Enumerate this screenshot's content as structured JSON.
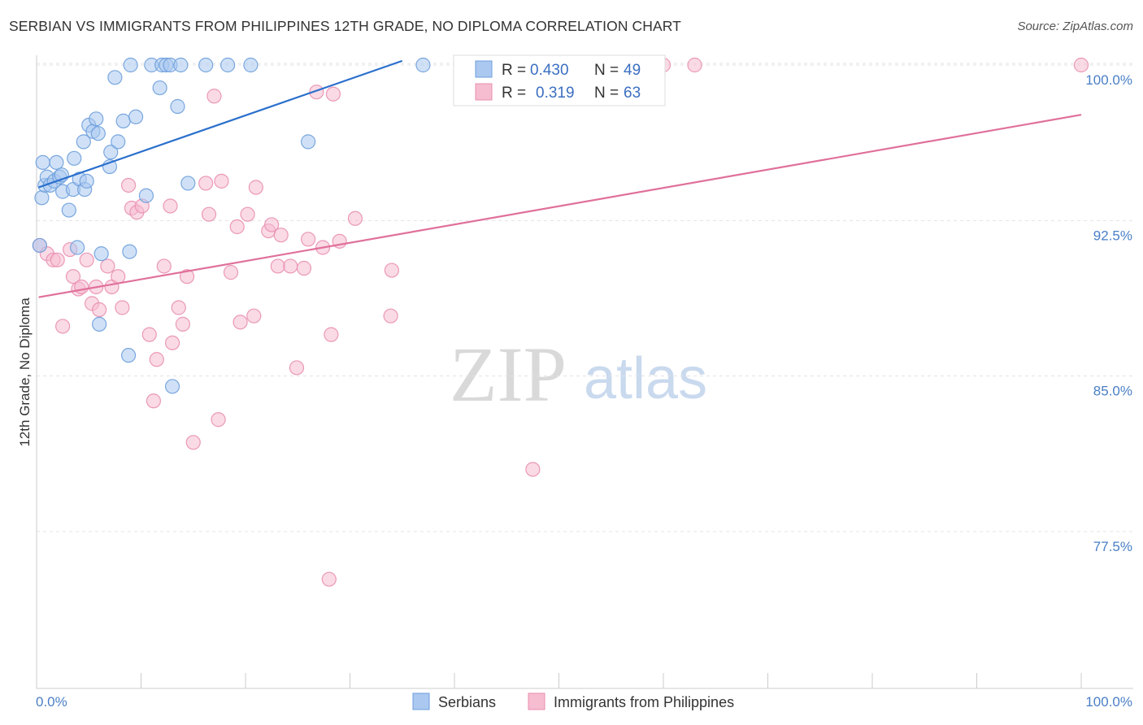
{
  "title": "SERBIAN VS IMMIGRANTS FROM PHILIPPINES 12TH GRADE, NO DIPLOMA CORRELATION CHART",
  "source": "Source: ZipAtlas.com",
  "watermark": {
    "zip": "ZIP",
    "atlas": "atlas"
  },
  "colors": {
    "serbians_fill": "#aac8f0",
    "serbians_stroke": "#6d9fdc",
    "serbians_line": "#2a6fcc",
    "philippines_fill": "#f6bcd0",
    "philippines_stroke": "#e98fb0",
    "philippines_line": "#e0709a",
    "grid": "#e3e3e3",
    "tick_label": "#4a7fc6"
  },
  "chart_data": {
    "type": "scatter",
    "title": "SERBIAN VS IMMIGRANTS FROM PHILIPPINES 12TH GRADE, NO DIPLOMA CORRELATION CHART",
    "xlabel": "",
    "ylabel": "12th Grade, No Diploma",
    "xlim": [
      0,
      100
    ],
    "ylim": [
      70.8,
      101.4
    ],
    "x_tick_labels": [
      "0.0%",
      "100.0%"
    ],
    "y_ticks": [
      100.0,
      92.5,
      85.0,
      77.5
    ],
    "y_tick_labels": [
      "100.0%",
      "92.5%",
      "85.0%",
      "77.5%"
    ],
    "grid": true,
    "legend_top": {
      "rows": [
        {
          "r_label": "R =",
          "r": "0.430",
          "n_label": "N =",
          "n": "49"
        },
        {
          "r_label": "R =",
          "r": "0.319",
          "n_label": "N =",
          "n": "63"
        }
      ]
    },
    "series": [
      {
        "name": "Serbians",
        "trend": {
          "x": [
            0.2,
            35.0
          ],
          "y": [
            94.1,
            100.2
          ]
        },
        "points": [
          [
            0.3,
            91.3
          ],
          [
            0.5,
            93.6
          ],
          [
            0.8,
            94.2
          ],
          [
            1.0,
            94.6
          ],
          [
            1.3,
            94.2
          ],
          [
            1.7,
            94.4
          ],
          [
            1.9,
            95.3
          ],
          [
            2.2,
            94.6
          ],
          [
            2.4,
            94.7
          ],
          [
            2.5,
            93.9
          ],
          [
            3.1,
            93.0
          ],
          [
            3.5,
            94.0
          ],
          [
            3.6,
            95.5
          ],
          [
            3.9,
            91.2
          ],
          [
            4.1,
            94.5
          ],
          [
            4.5,
            96.3
          ],
          [
            4.6,
            94.0
          ],
          [
            4.8,
            94.4
          ],
          [
            5.0,
            97.1
          ],
          [
            5.4,
            96.8
          ],
          [
            5.7,
            97.4
          ],
          [
            5.9,
            96.7
          ],
          [
            6.0,
            87.5
          ],
          [
            6.2,
            90.9
          ],
          [
            7.0,
            95.1
          ],
          [
            7.1,
            95.8
          ],
          [
            7.5,
            99.4
          ],
          [
            7.8,
            96.3
          ],
          [
            8.3,
            97.3
          ],
          [
            8.8,
            86.0
          ],
          [
            8.9,
            91.0
          ],
          [
            9.0,
            100.0
          ],
          [
            9.5,
            97.5
          ],
          [
            10.5,
            93.7
          ],
          [
            11.0,
            100.0
          ],
          [
            11.8,
            98.9
          ],
          [
            12.0,
            100.0
          ],
          [
            12.4,
            100.0
          ],
          [
            12.8,
            100.0
          ],
          [
            13.0,
            84.5
          ],
          [
            13.5,
            98.0
          ],
          [
            13.8,
            100.0
          ],
          [
            14.5,
            94.3
          ],
          [
            16.2,
            100.0
          ],
          [
            18.3,
            100.0
          ],
          [
            20.5,
            100.0
          ],
          [
            26.0,
            96.3
          ],
          [
            37.0,
            100.0
          ],
          [
            0.6,
            95.3
          ]
        ]
      },
      {
        "name": "Immigrants from Philippines",
        "trend": {
          "x": [
            0.2,
            100.0
          ],
          "y": [
            88.8,
            97.6
          ]
        },
        "points": [
          [
            0.3,
            91.3
          ],
          [
            1.0,
            90.9
          ],
          [
            1.6,
            90.6
          ],
          [
            2.0,
            90.6
          ],
          [
            2.5,
            87.4
          ],
          [
            3.2,
            91.1
          ],
          [
            3.5,
            89.8
          ],
          [
            4.0,
            89.2
          ],
          [
            4.3,
            89.3
          ],
          [
            4.8,
            90.6
          ],
          [
            5.3,
            88.5
          ],
          [
            5.7,
            89.3
          ],
          [
            6.0,
            88.2
          ],
          [
            6.8,
            90.3
          ],
          [
            7.2,
            89.3
          ],
          [
            7.8,
            89.8
          ],
          [
            8.2,
            88.3
          ],
          [
            8.8,
            94.2
          ],
          [
            9.1,
            93.1
          ],
          [
            9.6,
            92.9
          ],
          [
            10.1,
            93.2
          ],
          [
            10.8,
            87.0
          ],
          [
            11.2,
            83.8
          ],
          [
            11.5,
            85.8
          ],
          [
            12.2,
            90.3
          ],
          [
            12.8,
            93.2
          ],
          [
            13.0,
            86.6
          ],
          [
            13.6,
            88.3
          ],
          [
            14.0,
            87.5
          ],
          [
            14.4,
            89.8
          ],
          [
            15.0,
            81.8
          ],
          [
            16.2,
            94.3
          ],
          [
            16.5,
            92.8
          ],
          [
            17.0,
            98.5
          ],
          [
            17.4,
            82.9
          ],
          [
            17.7,
            94.4
          ],
          [
            18.6,
            90.0
          ],
          [
            19.2,
            92.2
          ],
          [
            19.5,
            87.6
          ],
          [
            20.2,
            92.8
          ],
          [
            20.8,
            87.9
          ],
          [
            21.0,
            94.1
          ],
          [
            22.2,
            92.0
          ],
          [
            22.5,
            92.3
          ],
          [
            23.1,
            90.3
          ],
          [
            23.4,
            91.8
          ],
          [
            24.3,
            90.3
          ],
          [
            24.9,
            85.4
          ],
          [
            25.6,
            90.2
          ],
          [
            26.0,
            91.6
          ],
          [
            26.8,
            98.7
          ],
          [
            27.4,
            91.2
          ],
          [
            28.0,
            75.2
          ],
          [
            28.2,
            87.0
          ],
          [
            28.4,
            98.6
          ],
          [
            30.5,
            92.6
          ],
          [
            33.9,
            87.9
          ],
          [
            34.0,
            90.1
          ],
          [
            47.5,
            80.5
          ],
          [
            60.0,
            100.0
          ],
          [
            63.0,
            100.0
          ],
          [
            100.0,
            100.0
          ],
          [
            29.0,
            91.5
          ]
        ]
      }
    ]
  },
  "bottom_legend": {
    "serbians_label": "Serbians",
    "philippines_label": "Immigrants from Philippines"
  }
}
